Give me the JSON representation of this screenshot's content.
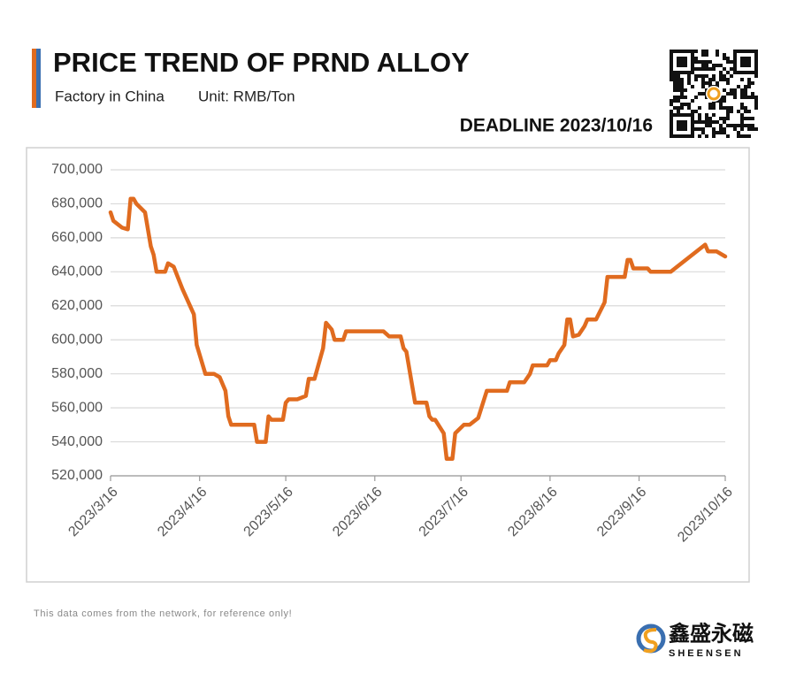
{
  "chart_data": {
    "type": "line",
    "title": "PRICE TREND OF PRND ALLOY",
    "subtitle": "Factory in China",
    "unit": "Unit: RMB/Ton",
    "deadline": "DEADLINE 2023/10/16",
    "color": "#e06b1f",
    "x": [
      "2023/3/16",
      "2023/3/17",
      "2023/3/20",
      "2023/3/22",
      "2023/3/23",
      "2023/3/24",
      "2023/3/25",
      "2023/3/28",
      "2023/3/30",
      "2023/3/31",
      "2023/4/1",
      "2023/4/4",
      "2023/4/5",
      "2023/4/7",
      "2023/4/10",
      "2023/4/14",
      "2023/4/15",
      "2023/4/18",
      "2023/4/21",
      "2023/4/23",
      "2023/4/25",
      "2023/4/26",
      "2023/4/27",
      "2023/5/5",
      "2023/5/6",
      "2023/5/9",
      "2023/5/10",
      "2023/5/11",
      "2023/5/15",
      "2023/5/16",
      "2023/5/17",
      "2023/5/20",
      "2023/5/23",
      "2023/5/24",
      "2023/5/26",
      "2023/5/29",
      "2023/5/30",
      "2023/6/1",
      "2023/6/2",
      "2023/6/5",
      "2023/6/6",
      "2023/6/19",
      "2023/6/21",
      "2023/6/25",
      "2023/6/26",
      "2023/6/27",
      "2023/6/30",
      "2023/7/4",
      "2023/7/5",
      "2023/7/6",
      "2023/7/7",
      "2023/7/10",
      "2023/7/11",
      "2023/7/13",
      "2023/7/14",
      "2023/7/17",
      "2023/7/19",
      "2023/7/22",
      "2023/7/25",
      "2023/8/1",
      "2023/8/2",
      "2023/8/7",
      "2023/8/9",
      "2023/8/10",
      "2023/8/15",
      "2023/8/16",
      "2023/8/18",
      "2023/8/19",
      "2023/8/21",
      "2023/8/22",
      "2023/8/23",
      "2023/8/24",
      "2023/8/26",
      "2023/8/28",
      "2023/8/29",
      "2023/9/1",
      "2023/9/4",
      "2023/9/5",
      "2023/9/11",
      "2023/9/12",
      "2023/9/13",
      "2023/9/14",
      "2023/9/19",
      "2023/9/20",
      "2023/9/27",
      "2023/10/9",
      "2023/10/10",
      "2023/10/13",
      "2023/10/16"
    ],
    "values": [
      675000,
      670000,
      666000,
      665000,
      683000,
      683000,
      680000,
      675000,
      655000,
      650000,
      640000,
      640000,
      645000,
      643000,
      630000,
      615000,
      597000,
      580000,
      580000,
      578000,
      570000,
      555000,
      550000,
      550000,
      540000,
      540000,
      555000,
      553000,
      553000,
      563000,
      565000,
      565000,
      567000,
      577000,
      577000,
      595000,
      610000,
      606000,
      600000,
      600000,
      605000,
      605000,
      602000,
      602000,
      595000,
      593000,
      563000,
      563000,
      555000,
      553000,
      553000,
      545000,
      530000,
      530000,
      545000,
      550000,
      550000,
      554000,
      570000,
      570000,
      575000,
      575000,
      580000,
      585000,
      585000,
      588000,
      588000,
      592000,
      597000,
      612000,
      612000,
      602000,
      603000,
      608000,
      612000,
      612000,
      622000,
      637000,
      637000,
      647000,
      647000,
      642000,
      642000,
      640000,
      640000,
      656000,
      652000,
      652000,
      649000
    ],
    "xlim": [
      "2023/3/16",
      "2023/10/16"
    ],
    "xticks": [
      "2023/3/16",
      "2023/4/16",
      "2023/5/16",
      "2023/6/16",
      "2023/7/16",
      "2023/8/16",
      "2023/9/16",
      "2023/10/16"
    ],
    "ylim": [
      520000,
      700000
    ],
    "yticks": [
      {
        "value": 520000,
        "label": "520,000"
      },
      {
        "value": 540000,
        "label": "540,000"
      },
      {
        "value": 560000,
        "label": "560,000"
      },
      {
        "value": 580000,
        "label": "580,000"
      },
      {
        "value": 600000,
        "label": "600,000"
      },
      {
        "value": 620000,
        "label": "620,000"
      },
      {
        "value": 640000,
        "label": "640,000"
      },
      {
        "value": 660000,
        "label": "660,000"
      },
      {
        "value": 680000,
        "label": "680,000"
      },
      {
        "value": 700000,
        "label": "700,000"
      }
    ],
    "grid": true
  },
  "note": "This data comes from the network, for reference only!",
  "brand": {
    "name": "鑫盛永磁",
    "latin": "SHEENSEN"
  }
}
